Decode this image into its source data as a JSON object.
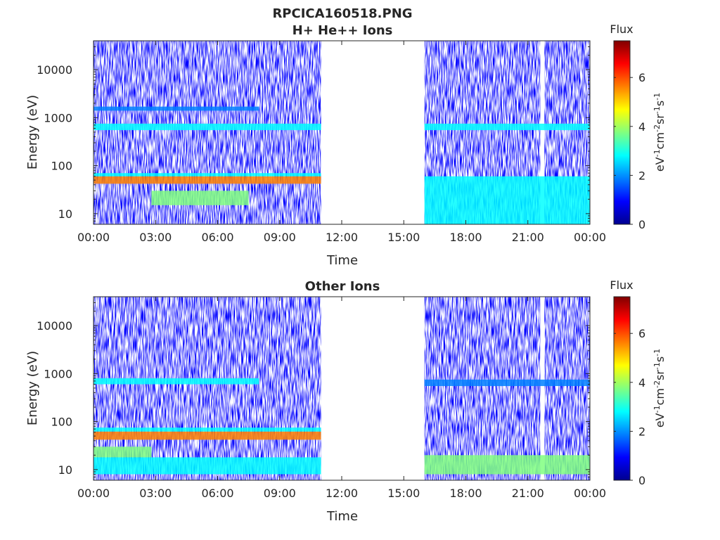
{
  "figure": {
    "title_line1": "RPCICA160518.PNG"
  },
  "colors": {
    "colormap": [
      "#00008f",
      "#0000ff",
      "#0080ff",
      "#00ffff",
      "#80ff80",
      "#ffff00",
      "#ff8000",
      "#ff0000",
      "#800000"
    ],
    "axis": "#262626",
    "background": "#ffffff"
  },
  "chart_data": [
    {
      "type": "heatmap",
      "title": "H+ He++ Ions",
      "xlabel": "Time",
      "ylabel": "Energy (eV)",
      "yscale": "log",
      "xticks": [
        "00:00",
        "03:00",
        "06:00",
        "09:00",
        "12:00",
        "15:00",
        "18:00",
        "21:00",
        "00:00"
      ],
      "yticks": [
        "10",
        "100",
        "1000",
        "10000"
      ],
      "xlim_hours": [
        0,
        24
      ],
      "ylim": [
        6,
        40000
      ],
      "data_gaps_hours": [
        [
          11,
          16
        ],
        [
          21.6,
          21.8
        ]
      ],
      "colorbar": {
        "title": "Flux",
        "label": "eV-1cm-2sr-1s-1",
        "ticks": [
          "0",
          "2",
          "4",
          "6"
        ],
        "range": [
          0,
          7.5
        ]
      },
      "bands": [
        {
          "t0": 0,
          "t1": 11,
          "e0": 42,
          "e1": 60,
          "value": 5.5
        },
        {
          "t0": 0,
          "t1": 11,
          "e0": 60,
          "e1": 70,
          "value": 3.0
        },
        {
          "t0": 0,
          "t1": 11,
          "e0": 550,
          "e1": 750,
          "value": 3.0
        },
        {
          "t0": 0,
          "t1": 8,
          "e0": 1400,
          "e1": 1700,
          "value": 2.0
        },
        {
          "t0": 2.8,
          "t1": 7.5,
          "e0": 15,
          "e1": 30,
          "value": 3.5
        },
        {
          "t0": 16,
          "t1": 24,
          "e0": 550,
          "e1": 750,
          "value": 3.0
        },
        {
          "t0": 16,
          "t1": 24,
          "e0": 6,
          "e1": 60,
          "value": 2.8
        }
      ]
    },
    {
      "type": "heatmap",
      "title": "Other Ions",
      "xlabel": "Time",
      "ylabel": "Energy (eV)",
      "yscale": "log",
      "xticks": [
        "00:00",
        "03:00",
        "06:00",
        "09:00",
        "12:00",
        "15:00",
        "18:00",
        "21:00",
        "00:00"
      ],
      "yticks": [
        "10",
        "100",
        "1000",
        "10000"
      ],
      "xlim_hours": [
        0,
        24
      ],
      "ylim": [
        6,
        40000
      ],
      "data_gaps_hours": [
        [
          11,
          16
        ],
        [
          21.6,
          21.8
        ]
      ],
      "colorbar": {
        "title": "Flux",
        "label": "eV-1cm-2sr-1s-1",
        "ticks": [
          "0",
          "2",
          "4",
          "6"
        ],
        "range": [
          0,
          7.5
        ]
      },
      "bands": [
        {
          "t0": 0,
          "t1": 11,
          "e0": 42,
          "e1": 62,
          "value": 6.0
        },
        {
          "t0": 0,
          "t1": 11,
          "e0": 62,
          "e1": 75,
          "value": 3.0
        },
        {
          "t0": 0,
          "t1": 2.8,
          "e0": 18,
          "e1": 30,
          "value": 4.0
        },
        {
          "t0": 0,
          "t1": 11,
          "e0": 8,
          "e1": 18,
          "value": 3.0
        },
        {
          "t0": 0,
          "t1": 8,
          "e0": 600,
          "e1": 800,
          "value": 2.5
        },
        {
          "t0": 16,
          "t1": 24,
          "e0": 550,
          "e1": 750,
          "value": 2.0
        },
        {
          "t0": 16,
          "t1": 24,
          "e0": 8,
          "e1": 20,
          "value": 4.2
        }
      ]
    }
  ]
}
